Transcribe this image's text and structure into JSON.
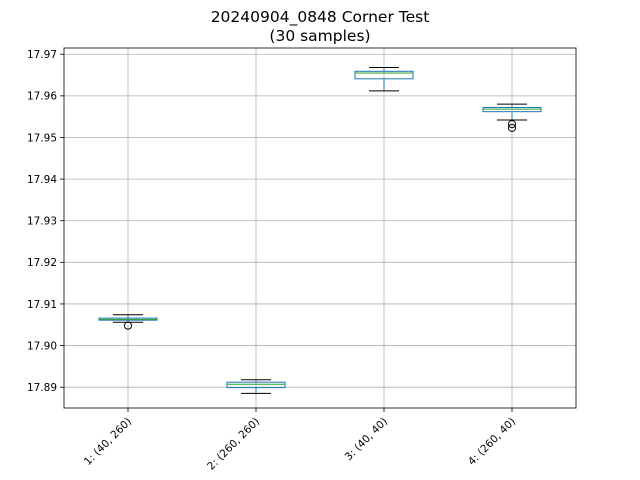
{
  "chart_data": {
    "type": "box",
    "title": "20240904_0848 Corner Test",
    "subtitle": "(30 samples)",
    "xlabel": "",
    "ylabel": "",
    "ylim": [
      17.885,
      17.9715
    ],
    "yticks": [
      "17.89",
      "17.90",
      "17.91",
      "17.92",
      "17.93",
      "17.94",
      "17.95",
      "17.96",
      "17.97"
    ],
    "ytick_values": [
      17.89,
      17.9,
      17.91,
      17.92,
      17.93,
      17.94,
      17.95,
      17.96,
      17.97
    ],
    "grid": true,
    "colors": {
      "box": "#1f77b4",
      "median": "#2ca02c",
      "whisker": "#000000",
      "grid": "#b0b0b0"
    },
    "categories": [
      "1: (40, 260)",
      "2: (260, 260)",
      "3: (40, 40)",
      "4: (260, 40)"
    ],
    "boxes": [
      {
        "whislo": 17.9056,
        "q1": 17.9061,
        "med": 17.9063,
        "q3": 17.9066,
        "whishi": 17.9074,
        "fliers": [
          17.9048
        ]
      },
      {
        "whislo": 17.8885,
        "q1": 17.8899,
        "med": 17.8907,
        "q3": 17.8912,
        "whishi": 17.8918,
        "fliers": []
      },
      {
        "whislo": 17.9612,
        "q1": 17.9641,
        "med": 17.9655,
        "q3": 17.9659,
        "whishi": 17.9668,
        "fliers": []
      },
      {
        "whislo": 17.9542,
        "q1": 17.9562,
        "med": 17.9568,
        "q3": 17.9572,
        "whishi": 17.958,
        "fliers": [
          17.9532,
          17.9523
        ]
      }
    ]
  }
}
